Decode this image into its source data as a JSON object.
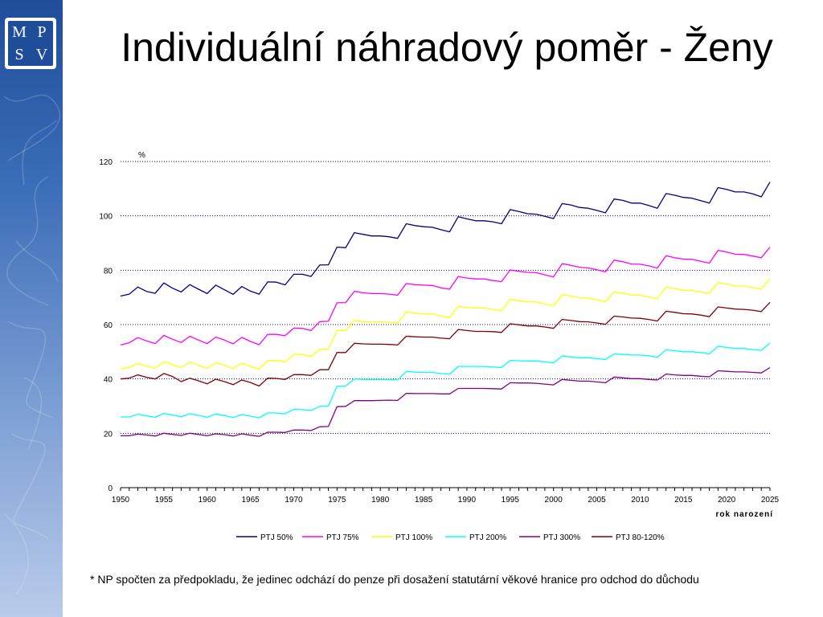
{
  "slide": {
    "title": "Individuální náhradový poměr - Ženy",
    "logo_letters": [
      "M",
      "P",
      "S",
      "V"
    ],
    "footnote": "* NP spočten za předpokladu, že jedinec odchází do penze při dosažení statutární věkové hranice pro odchod do důchodu"
  },
  "chart_data": {
    "type": "line",
    "title": "",
    "ylabel": "%",
    "xlabel": "rok narození",
    "ylim": [
      0,
      120
    ],
    "yticks": [
      0,
      20,
      40,
      60,
      80,
      100,
      120
    ],
    "xlim": [
      1950,
      2025
    ],
    "xticks": [
      1950,
      1955,
      1960,
      1965,
      1970,
      1975,
      1980,
      1985,
      1990,
      1995,
      2000,
      2005,
      2010,
      2015,
      2020,
      2025
    ],
    "grid": "horizontal dotted",
    "legend": "bottom",
    "x": [
      1950,
      1951,
      1952,
      1953,
      1954,
      1955,
      1956,
      1957,
      1958,
      1959,
      1960,
      1961,
      1962,
      1963,
      1964,
      1965,
      1966,
      1967,
      1968,
      1969,
      1970,
      1971,
      1972,
      1973,
      1974,
      1975,
      1976,
      1977,
      1978,
      1979,
      1980,
      1981,
      1982,
      1983,
      1984,
      1985,
      1986,
      1987,
      1988,
      1989,
      1990,
      1991,
      1992,
      1993,
      1994,
      1995,
      1996,
      1997,
      1998,
      1999,
      2000,
      2001,
      2002,
      2003,
      2004,
      2005,
      2006,
      2007,
      2008,
      2009,
      2010,
      2011,
      2012,
      2013,
      2014,
      2015,
      2016,
      2017,
      2018,
      2019,
      2020,
      2021,
      2022,
      2023,
      2024,
      2025
    ],
    "series": [
      {
        "name": "PTJ 50%",
        "color": "#000080",
        "values": [
          70.5,
          71.2,
          73.8,
          72.2,
          71.5,
          75.3,
          73.4,
          72.0,
          74.7,
          73.0,
          71.4,
          74.5,
          72.8,
          71.1,
          74.0,
          72.3,
          71.2,
          75.7,
          75.6,
          74.6,
          78.5,
          78.5,
          77.7,
          81.9,
          82.0,
          88.5,
          88.3,
          93.8,
          93.2,
          92.6,
          92.6,
          92.3,
          91.7,
          97.1,
          96.4,
          96.0,
          95.8,
          94.9,
          94.1,
          99.7,
          98.9,
          98.2,
          98.2,
          97.8,
          97.1,
          102.3,
          101.6,
          100.8,
          100.6,
          99.8,
          99.0,
          104.5,
          104.0,
          103.1,
          102.8,
          102.0,
          101.1,
          106.2,
          105.7,
          104.7,
          104.7,
          103.8,
          102.8,
          108.2,
          107.6,
          106.8,
          106.5,
          105.6,
          104.7,
          110.4,
          109.7,
          108.8,
          108.8,
          108.1,
          107.0,
          112.4
        ]
      },
      {
        "name": "PTJ 75%",
        "color": "#ff00ff",
        "values": [
          52.5,
          53.3,
          55.2,
          54.0,
          53.0,
          56.0,
          54.6,
          53.4,
          55.7,
          54.3,
          53.0,
          55.4,
          54.3,
          52.9,
          55.3,
          53.8,
          52.6,
          56.4,
          56.4,
          55.9,
          58.7,
          58.6,
          57.8,
          61.1,
          61.2,
          68.0,
          68.1,
          72.2,
          71.7,
          71.4,
          71.4,
          71.2,
          70.8,
          75.1,
          74.7,
          74.5,
          74.4,
          73.5,
          73.0,
          77.7,
          77.1,
          76.8,
          76.8,
          76.2,
          75.8,
          80.1,
          79.6,
          79.2,
          79.1,
          78.3,
          77.5,
          82.4,
          81.8,
          81.1,
          80.8,
          80.2,
          79.4,
          83.7,
          83.1,
          82.3,
          82.2,
          81.6,
          80.8,
          85.3,
          84.6,
          84.1,
          84.0,
          83.3,
          82.6,
          87.3,
          86.7,
          85.9,
          85.8,
          85.2,
          84.6,
          88.5
        ]
      },
      {
        "name": "PTJ 100%",
        "color": "#ffff00",
        "values": [
          43.8,
          44.2,
          45.7,
          44.7,
          43.9,
          46.4,
          45.2,
          44.2,
          46.2,
          45.0,
          43.9,
          46.0,
          45.0,
          43.8,
          45.8,
          44.6,
          43.6,
          46.8,
          46.8,
          46.2,
          49.0,
          49.0,
          48.2,
          50.9,
          51.0,
          57.8,
          57.8,
          61.6,
          61.1,
          61.0,
          61.0,
          60.9,
          60.5,
          64.8,
          64.2,
          64.0,
          63.9,
          63.1,
          62.6,
          66.7,
          66.3,
          66.1,
          66.1,
          65.6,
          65.1,
          69.3,
          68.8,
          68.4,
          68.3,
          67.6,
          66.9,
          71.0,
          70.5,
          69.9,
          69.7,
          69.1,
          68.4,
          72.0,
          71.5,
          70.9,
          70.8,
          70.2,
          69.5,
          73.8,
          73.3,
          72.6,
          72.5,
          72.0,
          71.4,
          75.5,
          74.9,
          74.2,
          74.2,
          73.6,
          73.0,
          77.0
        ]
      },
      {
        "name": "PTJ 200%",
        "color": "#00ffff",
        "values": [
          26.0,
          26.0,
          27.0,
          26.4,
          25.9,
          27.3,
          26.7,
          26.1,
          27.2,
          26.6,
          25.9,
          27.1,
          26.5,
          25.8,
          26.9,
          26.3,
          25.7,
          27.5,
          27.5,
          27.2,
          28.8,
          28.7,
          28.4,
          29.9,
          30.0,
          37.3,
          37.4,
          40.0,
          39.8,
          39.8,
          39.8,
          39.8,
          39.6,
          42.8,
          42.5,
          42.4,
          42.4,
          42.0,
          41.7,
          44.6,
          44.6,
          44.6,
          44.6,
          44.4,
          44.2,
          46.8,
          46.7,
          46.6,
          46.6,
          46.3,
          45.9,
          48.4,
          48.1,
          47.8,
          47.8,
          47.5,
          47.1,
          49.2,
          49.0,
          48.8,
          48.8,
          48.5,
          48.0,
          50.7,
          50.4,
          50.0,
          50.0,
          49.7,
          49.2,
          52.0,
          51.6,
          51.2,
          51.2,
          50.8,
          50.5,
          53.2
        ]
      },
      {
        "name": "PTJ 300%",
        "color": "#800080",
        "values": [
          19.1,
          19.1,
          19.7,
          19.4,
          19.0,
          20.0,
          19.6,
          19.2,
          20.0,
          19.6,
          19.1,
          19.8,
          19.5,
          19.0,
          19.8,
          19.3,
          18.9,
          20.4,
          20.4,
          20.3,
          21.2,
          21.2,
          21.0,
          22.4,
          22.5,
          29.8,
          29.9,
          32.0,
          32.0,
          32.0,
          32.1,
          32.2,
          32.1,
          34.7,
          34.6,
          34.6,
          34.6,
          34.5,
          34.5,
          36.5,
          36.5,
          36.5,
          36.5,
          36.4,
          36.3,
          38.6,
          38.5,
          38.5,
          38.4,
          38.1,
          37.8,
          39.8,
          39.5,
          39.2,
          39.2,
          38.9,
          38.6,
          40.7,
          40.4,
          40.1,
          40.1,
          39.8,
          39.6,
          41.8,
          41.5,
          41.3,
          41.3,
          41.0,
          40.8,
          43.0,
          42.8,
          42.6,
          42.6,
          42.4,
          42.2,
          44.2
        ]
      },
      {
        "name": "PTJ 80-120%",
        "color": "#800000",
        "values": [
          40.0,
          40.3,
          41.5,
          40.6,
          40.0,
          42.0,
          40.9,
          39.0,
          40.3,
          39.3,
          38.2,
          39.9,
          39.0,
          37.9,
          39.6,
          38.7,
          37.4,
          40.3,
          40.2,
          39.8,
          41.6,
          41.6,
          41.3,
          43.4,
          43.4,
          49.7,
          49.7,
          53.1,
          52.9,
          52.8,
          52.8,
          52.7,
          52.5,
          55.7,
          55.5,
          55.4,
          55.4,
          55.0,
          54.8,
          58.2,
          57.8,
          57.5,
          57.5,
          57.4,
          57.1,
          60.3,
          59.9,
          59.5,
          59.5,
          59.1,
          58.6,
          61.9,
          61.5,
          61.1,
          61.0,
          60.6,
          60.1,
          63.1,
          62.8,
          62.4,
          62.3,
          61.9,
          61.3,
          64.9,
          64.5,
          64.0,
          63.9,
          63.5,
          62.9,
          66.5,
          66.1,
          65.7,
          65.6,
          65.3,
          64.8,
          68.2
        ]
      }
    ]
  }
}
